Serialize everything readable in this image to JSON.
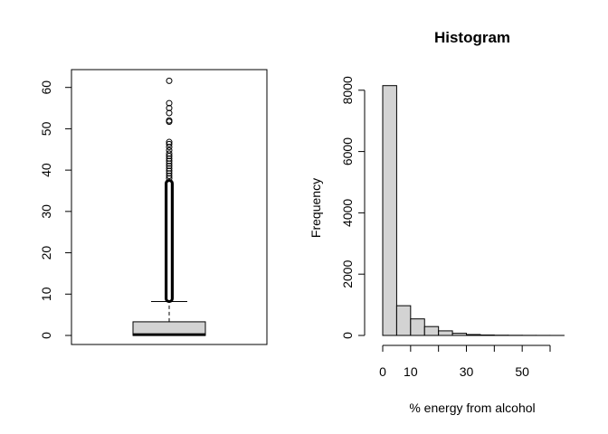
{
  "chart_data": [
    {
      "type": "box",
      "title": "",
      "xlabel": "",
      "ylabel": "",
      "ylim": [
        0,
        63
      ],
      "y_ticks": [
        0,
        10,
        20,
        30,
        40,
        50,
        60
      ],
      "box": {
        "min": 0,
        "q1": 0,
        "median": 0.2,
        "q3": 3.3,
        "whisker_high": 8.2
      },
      "outlier_dense_range": [
        8.2,
        37.5
      ],
      "outliers": [
        38.0,
        38.6,
        39.2,
        39.8,
        40.4,
        41.0,
        41.6,
        42.2,
        42.8,
        43.4,
        44.0,
        44.8,
        45.6,
        46.3,
        46.8,
        51.7,
        52.0,
        53.8,
        55.0,
        56.2,
        61.6
      ],
      "box_fill": "#d3d3d3"
    },
    {
      "type": "histogram",
      "title": "Histogram",
      "xlabel": "% energy from alcohol",
      "ylabel": "Frequency",
      "bin_edges": [
        0,
        5,
        10,
        15,
        20,
        25,
        30,
        35,
        40,
        45,
        50,
        55,
        60,
        65
      ],
      "values": [
        8150,
        970,
        540,
        290,
        150,
        70,
        30,
        15,
        8,
        5,
        3,
        2,
        1
      ],
      "x_ticks": [
        0,
        10,
        20,
        30,
        40,
        50,
        60
      ],
      "x_tick_labels": [
        "0",
        "10",
        "",
        "30",
        "",
        "50",
        ""
      ],
      "y_ticks": [
        0,
        2000,
        4000,
        6000,
        8000
      ],
      "ylim": [
        0,
        8400
      ],
      "bar_fill": "#d3d3d3"
    }
  ]
}
